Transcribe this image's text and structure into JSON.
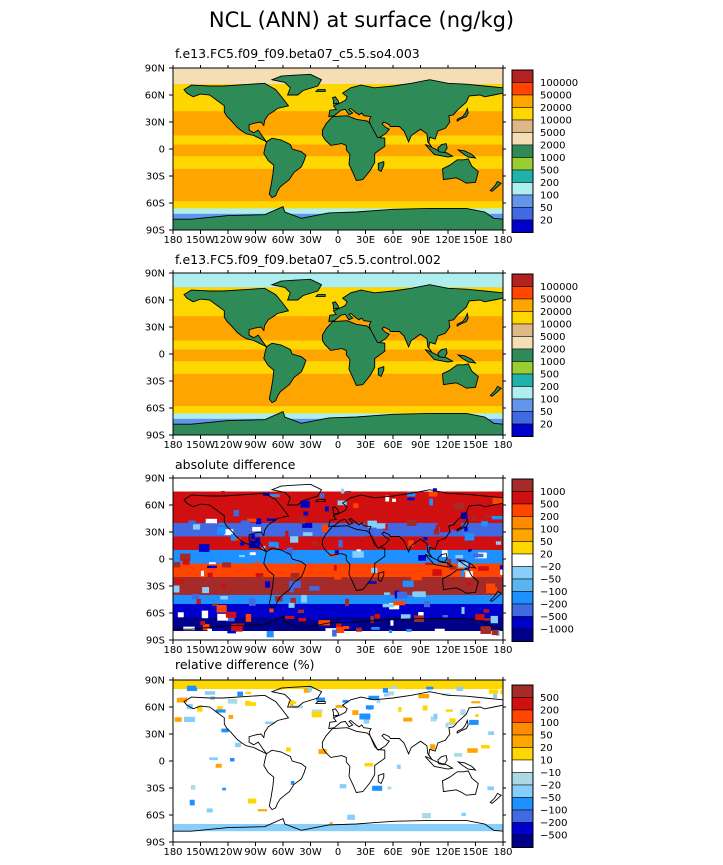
{
  "title": "NCL (ANN) at surface (ng/kg)",
  "chart_data": [
    {
      "type": "heatmap",
      "title": "f.e13.FC5.f09_f09.beta07_c5.5.so4.003",
      "projection": "cylindrical equidistant",
      "xlim": [
        -180,
        180
      ],
      "ylim": [
        -90,
        90
      ],
      "x_ticks": [
        "180",
        "150W",
        "120W",
        "90W",
        "60W",
        "30W",
        "0",
        "30E",
        "60E",
        "90E",
        "120E",
        "150E",
        "180"
      ],
      "y_ticks": [
        "90N",
        "60N",
        "30N",
        "0",
        "30S",
        "60S",
        "90S"
      ],
      "colorbar": {
        "levels": [
          "100000",
          "50000",
          "20000",
          "10000",
          "5000",
          "2000",
          "1000",
          "500",
          "200",
          "100",
          "50",
          "20"
        ],
        "colors": [
          "#b22222",
          "#ff4500",
          "#ffa500",
          "#ffd700",
          "#deb887",
          "#f5deb3",
          "#2e8b57",
          "#9acd32",
          "#20b2aa",
          "#afeeee",
          "#6495ed",
          "#4169e1",
          "#0000cd"
        ]
      }
    },
    {
      "type": "heatmap",
      "title": "f.e13.FC5.f09_f09.beta07_c5.5.control.002",
      "projection": "cylindrical equidistant",
      "xlim": [
        -180,
        180
      ],
      "ylim": [
        -90,
        90
      ],
      "x_ticks": [
        "180",
        "150W",
        "120W",
        "90W",
        "60W",
        "30W",
        "0",
        "30E",
        "60E",
        "90E",
        "120E",
        "150E",
        "180"
      ],
      "y_ticks": [
        "90N",
        "60N",
        "30N",
        "0",
        "30S",
        "60S",
        "90S"
      ],
      "colorbar": {
        "levels": [
          "100000",
          "50000",
          "20000",
          "10000",
          "5000",
          "2000",
          "1000",
          "500",
          "200",
          "100",
          "50",
          "20"
        ],
        "colors": [
          "#b22222",
          "#ff4500",
          "#ffa500",
          "#ffd700",
          "#deb887",
          "#f5deb3",
          "#2e8b57",
          "#9acd32",
          "#20b2aa",
          "#afeeee",
          "#6495ed",
          "#4169e1",
          "#0000cd"
        ]
      }
    },
    {
      "type": "heatmap",
      "title": "absolute difference",
      "projection": "cylindrical equidistant",
      "xlim": [
        -180,
        180
      ],
      "ylim": [
        -90,
        90
      ],
      "x_ticks": [
        "180",
        "150W",
        "120W",
        "90W",
        "60W",
        "30W",
        "0",
        "30E",
        "60E",
        "90E",
        "120E",
        "150E",
        "180"
      ],
      "y_ticks": [
        "90N",
        "60N",
        "30N",
        "0",
        "30S",
        "60S",
        "90S"
      ],
      "colorbar": {
        "levels": [
          "1000",
          "500",
          "200",
          "100",
          "50",
          "20",
          "−20",
          "−50",
          "−100",
          "−200",
          "−500",
          "−1000"
        ],
        "colors": [
          "#a52a2a",
          "#d01010",
          "#ff4500",
          "#ff8c00",
          "#ffa500",
          "#ffd700",
          "#ffffff",
          "#87cefa",
          "#5ab4f0",
          "#1e90ff",
          "#4169e1",
          "#0000cd",
          "#00008b"
        ]
      }
    },
    {
      "type": "heatmap",
      "title": "relative difference (%)",
      "projection": "cylindrical equidistant",
      "xlim": [
        -180,
        180
      ],
      "ylim": [
        -90,
        90
      ],
      "x_ticks": [
        "180",
        "150W",
        "120W",
        "90W",
        "60W",
        "30W",
        "0",
        "30E",
        "60E",
        "90E",
        "120E",
        "150E",
        "180"
      ],
      "y_ticks": [
        "90N",
        "60N",
        "30N",
        "0",
        "30S",
        "60S",
        "90S"
      ],
      "colorbar": {
        "levels": [
          "500",
          "200",
          "100",
          "50",
          "20",
          "10",
          "−10",
          "−20",
          "−50",
          "−100",
          "−200",
          "−500"
        ],
        "colors": [
          "#a52a2a",
          "#d01010",
          "#ff4500",
          "#ff8c00",
          "#ffa500",
          "#ffd700",
          "#ffffff",
          "#add8e6",
          "#87cefa",
          "#1e90ff",
          "#4169e1",
          "#0000cd",
          "#00008b"
        ]
      }
    }
  ]
}
